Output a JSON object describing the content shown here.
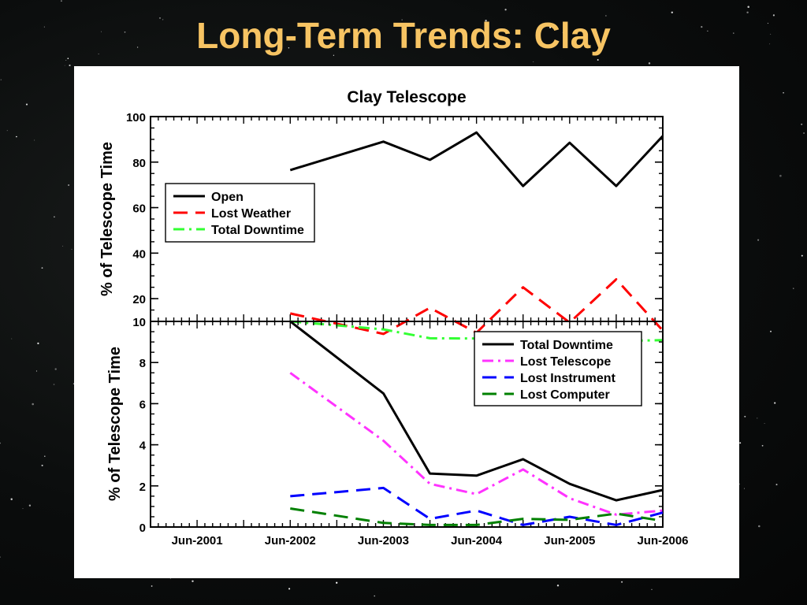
{
  "slide": {
    "title": "Long-Term Trends: Clay"
  },
  "chart_data": [
    {
      "type": "line",
      "title": "Clay Telescope",
      "ylabel": "% of Telescope Time",
      "xlabel": "",
      "xlim": [
        "2000-12",
        "2006-06"
      ],
      "ylim": [
        10,
        100
      ],
      "yticks": [
        10,
        20,
        40,
        60,
        80,
        100
      ],
      "legend": "middle-left",
      "series": [
        {
          "name": "Open",
          "color": "#000000",
          "dash": "solid",
          "x": [
            "2002-06",
            "2003-06",
            "2003-12",
            "2004-06",
            "2004-12",
            "2005-06",
            "2005-12",
            "2006-06"
          ],
          "y": [
            76.5,
            89,
            81,
            93,
            69.5,
            88.5,
            69.5,
            91.5
          ]
        },
        {
          "name": "Lost Weather",
          "color": "#ff0000",
          "dash": "long-dash",
          "x": [
            "2002-06",
            "2003-06",
            "2003-12",
            "2004-06",
            "2004-12",
            "2005-06",
            "2005-12",
            "2006-06"
          ],
          "y": [
            13.5,
            4.5,
            16,
            5,
            25,
            9.5,
            28.5,
            6
          ]
        },
        {
          "name": "Total Downtime",
          "color": "#33ff33",
          "dash": "dash-dot",
          "x": [
            "2002-06",
            "2003-06",
            "2003-12",
            "2004-06",
            "2004-12",
            "2005-06",
            "2005-12",
            "2006-06"
          ],
          "y": [
            10,
            6.5,
            2.6,
            2.5,
            3.3,
            2.1,
            1.3,
            1.8
          ]
        }
      ]
    },
    {
      "type": "line",
      "title": "",
      "ylabel": "% of Telescope Time",
      "xlabel": "",
      "xlim": [
        "2000-12",
        "2006-06"
      ],
      "ylim": [
        0,
        10
      ],
      "yticks": [
        0,
        2,
        4,
        6,
        8
      ],
      "categories": [
        "Jun-2001",
        "Jun-2002",
        "Jun-2003",
        "Jun-2004",
        "Jun-2005",
        "Jun-2006"
      ],
      "legend": "top-right",
      "series": [
        {
          "name": "Total Downtime",
          "color": "#000000",
          "dash": "solid",
          "x": [
            "2002-06",
            "2003-06",
            "2003-12",
            "2004-06",
            "2004-12",
            "2005-06",
            "2005-12",
            "2006-06"
          ],
          "y": [
            10,
            6.5,
            2.6,
            2.5,
            3.3,
            2.1,
            1.3,
            1.8
          ]
        },
        {
          "name": "Lost Telescope",
          "color": "#ff33ff",
          "dash": "dash-dot",
          "x": [
            "2002-06",
            "2003-06",
            "2003-12",
            "2004-06",
            "2004-12",
            "2005-06",
            "2005-12",
            "2006-06"
          ],
          "y": [
            7.5,
            4.2,
            2.1,
            1.6,
            2.8,
            1.4,
            0.6,
            0.8
          ]
        },
        {
          "name": "Lost Instrument",
          "color": "#0000ff",
          "dash": "long-dash",
          "x": [
            "2002-06",
            "2003-06",
            "2003-12",
            "2004-06",
            "2004-12",
            "2005-06",
            "2005-12",
            "2006-06"
          ],
          "y": [
            1.5,
            1.9,
            0.4,
            0.8,
            0.1,
            0.5,
            0.1,
            0.7
          ]
        },
        {
          "name": "Lost Computer",
          "color": "#008000",
          "dash": "long-dash",
          "x": [
            "2002-06",
            "2003-06",
            "2003-12",
            "2004-06",
            "2004-12",
            "2005-06",
            "2005-12",
            "2006-06"
          ],
          "y": [
            0.9,
            0.2,
            0.1,
            0.1,
            0.4,
            0.35,
            0.65,
            0.3
          ]
        }
      ]
    }
  ]
}
